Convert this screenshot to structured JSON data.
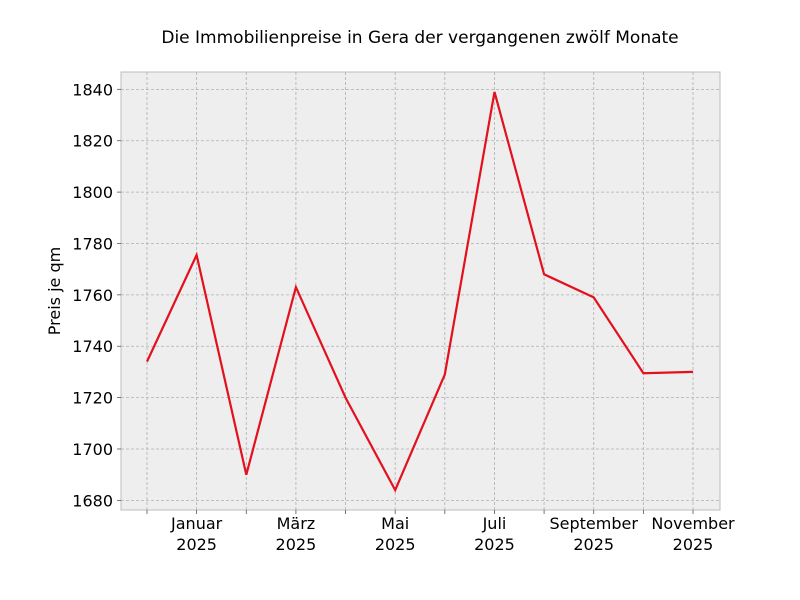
{
  "chart_data": {
    "type": "line",
    "title": "Die Immobilienpreise in Gera der vergangenen zwölf Monate",
    "xlabel": "",
    "ylabel": "Preis je qm",
    "x": [
      "2024-12",
      "2025-01",
      "2025-02",
      "2025-03",
      "2025-04",
      "2025-05",
      "2025-06",
      "2025-07",
      "2025-08",
      "2025-09",
      "2025-10",
      "2025-11"
    ],
    "series": [
      {
        "values": [
          1734,
          1775.5,
          1690,
          1763,
          1720,
          1684,
          1729,
          1839,
          1768,
          1759,
          1729.5,
          1730
        ],
        "color": "#e3101e"
      }
    ],
    "x_tick_labels": [
      {
        "month": "Januar",
        "year": "2025",
        "index": 1
      },
      {
        "month": "März",
        "year": "2025",
        "index": 3
      },
      {
        "month": "Mai",
        "year": "2025",
        "index": 5
      },
      {
        "month": "Juli",
        "year": "2025",
        "index": 7
      },
      {
        "month": "September",
        "year": "2025",
        "index": 9
      },
      {
        "month": "November",
        "year": "2025",
        "index": 11
      }
    ],
    "y_ticks": [
      1680,
      1700,
      1720,
      1740,
      1760,
      1780,
      1800,
      1820,
      1840
    ],
    "ylim": [
      1676.25,
      1846.75
    ],
    "grid": true,
    "background": "#eeeeee"
  }
}
